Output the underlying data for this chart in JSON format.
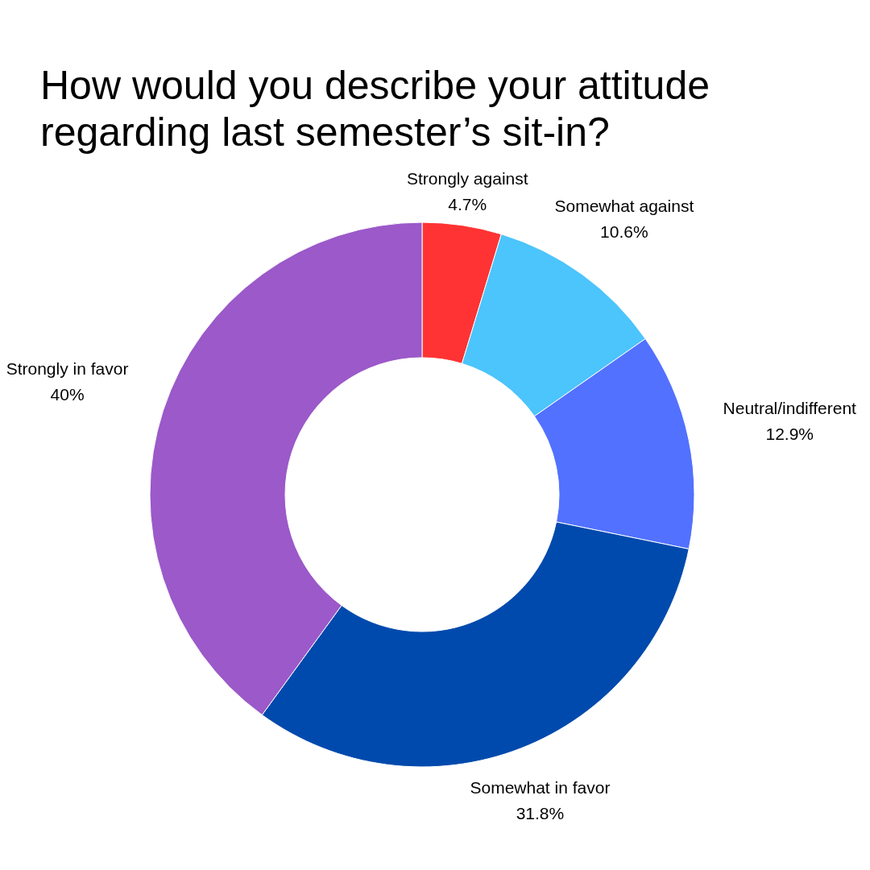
{
  "chart_data": {
    "type": "donut",
    "title": "How would you describe your attitude regarding last semester’s sit-in?",
    "categories": [
      "Strongly against",
      "Somewhat against",
      "Neutral/indifferent",
      "Somewhat in favor",
      "Strongly in favor"
    ],
    "values": [
      4.7,
      10.6,
      12.9,
      31.8,
      40
    ],
    "colors": [
      "#ff3333",
      "#4cc4fc",
      "#5271ff",
      "#004aad",
      "#9b59c9"
    ],
    "value_labels": [
      "4.7%",
      "10.6%",
      "12.9%",
      "31.8%",
      "40%"
    ]
  }
}
